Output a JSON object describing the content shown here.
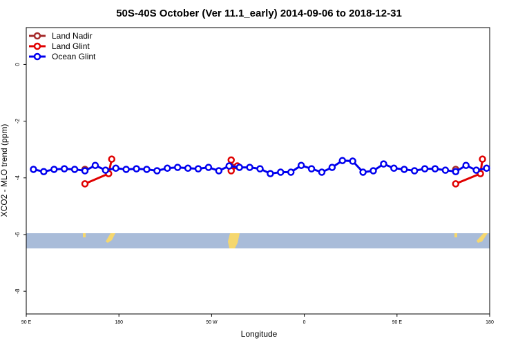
{
  "chart_data": {
    "type": "line",
    "title": "50S-40S October (Ver 11.1_early)   2014-09-06 to 2018-12-31",
    "xlabel": "Longitude",
    "ylabel": "XCO2 - MLO trend (ppm)",
    "xlim": [
      90,
      540
    ],
    "ylim": [
      -8.8,
      1.3
    ],
    "xticks": [
      {
        "value": 90,
        "label": "90 E"
      },
      {
        "value": 180,
        "label": "180"
      },
      {
        "value": 270,
        "label": "90 W"
      },
      {
        "value": 360,
        "label": "0"
      },
      {
        "value": 450,
        "label": "90 E"
      },
      {
        "value": 540,
        "label": "180"
      }
    ],
    "yticks": [
      0,
      -2,
      -4,
      -6,
      -8
    ],
    "legend": "top-left",
    "series": [
      {
        "name": "Land Nadir",
        "color": "#a52a2a",
        "x": [
          147,
          null,
          289,
          null,
          507
        ],
        "values": [
          -3.7,
          null,
          -3.6,
          null,
          -3.7
        ]
      },
      {
        "name": "Land Glint",
        "color": "#e00000",
        "x": [
          147,
          170,
          173,
          null,
          289,
          289,
          295,
          null,
          507,
          531,
          533
        ],
        "values": [
          -4.21,
          -3.85,
          -3.34,
          null,
          -3.37,
          -3.75,
          -3.58,
          null,
          -4.21,
          -3.85,
          -3.34
        ]
      },
      {
        "name": "Ocean Glint",
        "color": "#0000ee",
        "x": [
          97,
          107,
          117,
          127,
          137,
          147,
          157,
          167,
          177,
          187,
          197,
          207,
          217,
          227,
          237,
          247,
          257,
          267,
          277,
          287,
          297,
          307,
          317,
          327,
          337,
          347,
          357,
          367,
          377,
          387,
          397,
          407,
          417,
          427,
          437,
          447,
          457,
          467,
          477,
          487,
          497,
          507,
          517,
          527,
          537
        ],
        "values": [
          -3.7,
          -3.78,
          -3.7,
          -3.68,
          -3.7,
          -3.75,
          -3.56,
          -3.73,
          -3.66,
          -3.7,
          -3.68,
          -3.7,
          -3.75,
          -3.66,
          -3.63,
          -3.66,
          -3.68,
          -3.63,
          -3.75,
          -3.58,
          -3.63,
          -3.63,
          -3.68,
          -3.85,
          -3.8,
          -3.8,
          -3.56,
          -3.68,
          -3.8,
          -3.63,
          -3.39,
          -3.41,
          -3.8,
          -3.75,
          -3.51,
          -3.66,
          -3.7,
          -3.75,
          -3.68,
          -3.68,
          -3.73,
          -3.78,
          -3.56,
          -3.73,
          -3.66
        ]
      }
    ]
  }
}
